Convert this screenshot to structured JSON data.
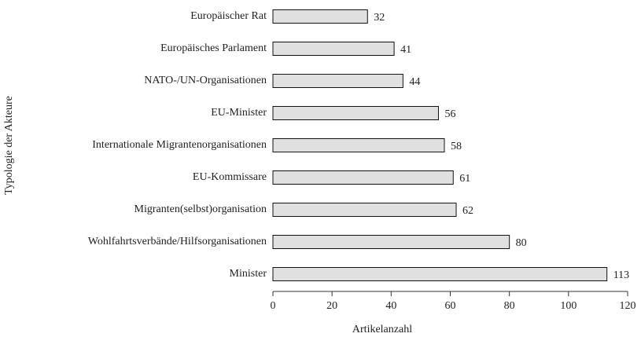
{
  "chart_data": {
    "type": "bar",
    "orientation": "horizontal",
    "categories": [
      "Europäischer Rat",
      "Europäisches Parlament",
      "NATO-/UN-Organisationen",
      "EU-Minister",
      "Internationale Migrantenorganisationen",
      "EU-Kommissare",
      "Migranten(selbst)organisation",
      "Wohlfahrtsverbände/Hilfsorganisationen",
      "Minister"
    ],
    "values": [
      32,
      41,
      44,
      56,
      58,
      61,
      62,
      80,
      113
    ],
    "color": "#e0e0e0",
    "xlim": [
      0,
      120
    ],
    "xticks": [
      0,
      20,
      40,
      60,
      80,
      100,
      120
    ],
    "x_label": "Artikelanzahl",
    "y_label": "Typologie der Akteure",
    "grid": false
  }
}
